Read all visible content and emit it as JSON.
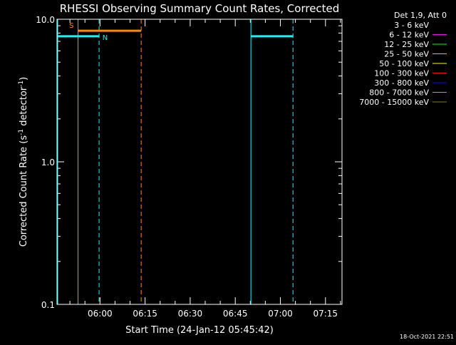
{
  "chart_data": {
    "type": "line",
    "title": "RHESSI Observing Summary Count Rates, Corrected",
    "xlabel": "Start Time (24-Jan-12 05:45:42)",
    "ylabel_main": "Corrected Count Rate (s",
    "ylabel_sup1": "-1",
    "ylabel_mid": " detector",
    "ylabel_sup2": "-1",
    "ylabel_end": ")",
    "yscale": "log",
    "ylim": [
      0.1,
      10.0
    ],
    "y_ticks": [
      {
        "value": 0.1,
        "label": "0.1"
      },
      {
        "value": 1.0,
        "label": "1.0"
      },
      {
        "value": 10.0,
        "label": "10.0"
      }
    ],
    "xlim_minutes": [
      0,
      94.8
    ],
    "x_ticks": [
      {
        "minute": 14.3,
        "label": "06:00"
      },
      {
        "minute": 29.3,
        "label": "06:15"
      },
      {
        "minute": 44.3,
        "label": "06:30"
      },
      {
        "minute": 59.3,
        "label": "06:45"
      },
      {
        "minute": 74.3,
        "label": "07:00"
      },
      {
        "minute": 89.3,
        "label": "07:15"
      }
    ],
    "legend": {
      "header": "Det 1,9, Att 0",
      "position": "top-right",
      "entries": [
        {
          "label": "3 - 6 keV",
          "color": "#000000"
        },
        {
          "label": "6 - 12 keV",
          "color": "#ff00ff"
        },
        {
          "label": "12 - 25 keV",
          "color": "#00ff00"
        },
        {
          "label": "25 - 50 keV",
          "color": "#00ffff"
        },
        {
          "label": "50 - 100 keV",
          "color": "#ffff00"
        },
        {
          "label": "100 - 300 keV",
          "color": "#ff0000"
        },
        {
          "label": "300 - 800 keV",
          "color": "#0000ff"
        },
        {
          "label": "800 - 7000 keV",
          "color": "#ff8c00"
        },
        {
          "label": "7000 - 15000 keV",
          "color": "#808000"
        }
      ]
    },
    "series": [
      {
        "name": "25 - 50 keV segment 1",
        "color": "#00ffff",
        "x0": 0,
        "x1": 14.0,
        "y": 7.6
      },
      {
        "name": "800 - 7000 keV segment",
        "color": "#ff8c00",
        "x0": 7.0,
        "x1": 28.0,
        "y": 8.3
      },
      {
        "name": "25 - 50 keV segment 2",
        "color": "#00ffff",
        "x0": 64.5,
        "x1": 78.5,
        "y": 7.6
      }
    ],
    "vlines": [
      {
        "minute": 0.0,
        "color": "#00ffff",
        "style": "solid"
      },
      {
        "minute": 7.0,
        "color": "#ff8c00",
        "style": "solid"
      },
      {
        "minute": 14.0,
        "color": "#00ffff",
        "style": "dashed"
      },
      {
        "minute": 28.0,
        "color": "#ff8c00",
        "style": "dashed"
      },
      {
        "minute": 64.5,
        "color": "#00ffff",
        "style": "solid"
      },
      {
        "minute": 78.5,
        "color": "#00ffff",
        "style": "dashed"
      }
    ],
    "annotations": [
      {
        "text": "S",
        "color": "#ff8c00",
        "minute": 4.8,
        "y": 9.2
      },
      {
        "text": "N",
        "color": "#00ffff",
        "minute": 16.0,
        "y": 7.6
      }
    ],
    "timestamp": "18-Oct-2021 22:51"
  }
}
